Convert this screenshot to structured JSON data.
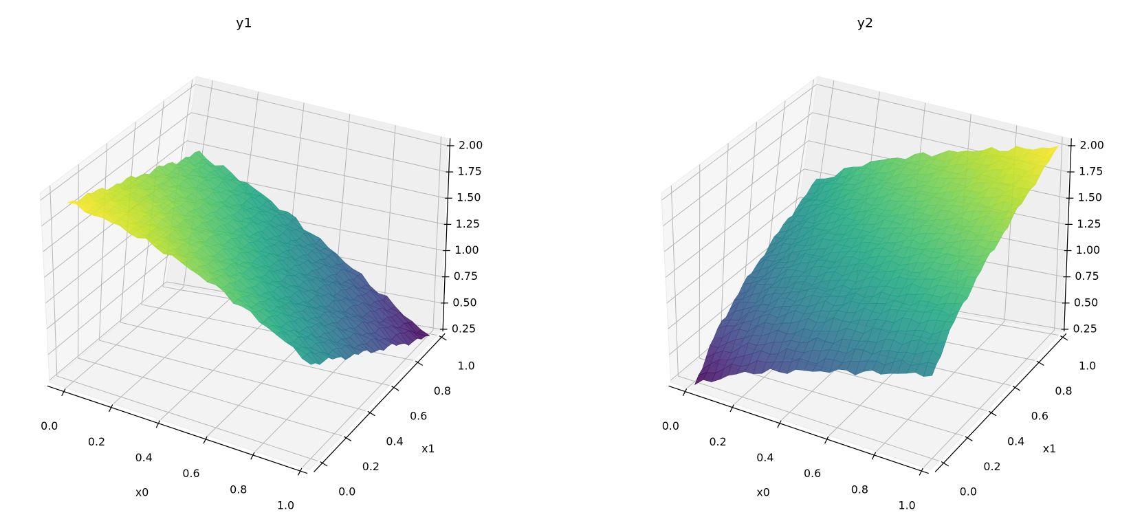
{
  "chart_data": [
    {
      "type": "surface",
      "title": "y1",
      "xlabel": "x0",
      "ylabel": "x1",
      "colormap": "viridis",
      "x0": [
        0,
        0.2,
        0.4,
        0.6,
        0.8,
        1.0
      ],
      "x1": [
        0,
        0.2,
        0.4,
        0.6,
        0.8,
        1.0
      ],
      "z": [
        [
          1.95,
          1.87,
          1.74,
          1.56,
          1.34,
          1.1
        ],
        [
          1.85,
          1.76,
          1.6,
          1.41,
          1.18,
          0.92
        ],
        [
          1.75,
          1.64,
          1.47,
          1.26,
          1.01,
          0.74
        ],
        [
          1.65,
          1.53,
          1.34,
          1.11,
          0.85,
          0.56
        ],
        [
          1.55,
          1.41,
          1.21,
          0.96,
          0.69,
          0.38
        ],
        [
          1.45,
          1.29,
          1.08,
          0.82,
          0.52,
          0.2
        ]
      ],
      "xlim": [
        -0.07,
        1.03
      ],
      "ylim": [
        -0.07,
        1.03
      ],
      "zlim": [
        0.23,
        2.07
      ],
      "x_ticks": [
        "0.0",
        "0.2",
        "0.4",
        "0.6",
        "0.8",
        "1.0"
      ],
      "y_ticks": [
        "0.0",
        "0.2",
        "0.4",
        "0.6",
        "0.8",
        "1.0"
      ],
      "z_ticks": [
        "0.25",
        "0.50",
        "0.75",
        "1.00",
        "1.25",
        "1.50",
        "1.75",
        "2.00"
      ],
      "grid": true
    },
    {
      "type": "surface",
      "title": "y2",
      "xlabel": "x0",
      "ylabel": "x1",
      "colormap": "viridis",
      "x0": [
        0,
        0.2,
        0.4,
        0.6,
        0.8,
        1.0
      ],
      "x1": [
        0,
        0.2,
        0.4,
        0.6,
        0.8,
        1.0
      ],
      "z": [
        [
          0.2,
          0.46,
          0.62,
          0.76,
          0.88,
          1.0
        ],
        [
          0.52,
          0.78,
          0.95,
          1.08,
          1.21,
          1.32
        ],
        [
          0.73,
          0.99,
          1.15,
          1.29,
          1.41,
          1.53
        ],
        [
          0.9,
          1.16,
          1.32,
          1.46,
          1.58,
          1.7
        ],
        [
          1.06,
          1.31,
          1.48,
          1.61,
          1.74,
          1.86
        ],
        [
          1.2,
          1.46,
          1.62,
          1.76,
          1.88,
          2.0
        ]
      ],
      "xlim": [
        -0.07,
        1.03
      ],
      "ylim": [
        -0.07,
        1.03
      ],
      "zlim": [
        0.23,
        2.07
      ],
      "x_ticks": [
        "0.0",
        "0.2",
        "0.4",
        "0.6",
        "0.8",
        "1.0"
      ],
      "y_ticks": [
        "0.0",
        "0.2",
        "0.4",
        "0.6",
        "0.8",
        "1.0"
      ],
      "z_ticks": [
        "0.25",
        "0.50",
        "0.75",
        "1.00",
        "1.25",
        "1.50",
        "1.75",
        "2.00"
      ],
      "grid": true
    }
  ]
}
